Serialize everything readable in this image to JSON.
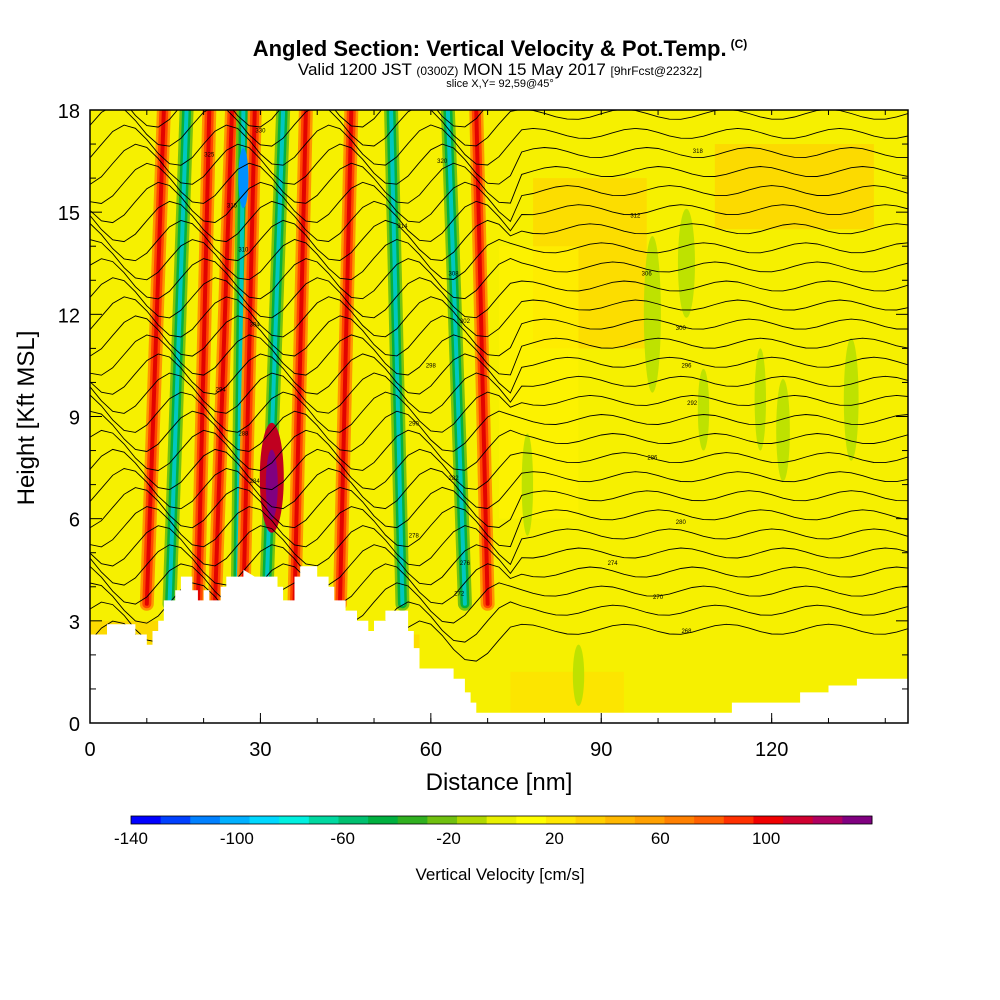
{
  "title": {
    "main": "Angled Section: Vertical Velocity & Pot.Temp.",
    "tag": "(C)",
    "valid_a": "Valid 1200 JST",
    "valid_b": "(0300Z)",
    "valid_c": "MON 15 May 2017",
    "valid_d": "[9hrFcst@2232z]",
    "slice": "slice X,Y= 92,59@45°"
  },
  "chart_data": {
    "type": "heatmap",
    "xlabel": "Distance [nm]",
    "ylabel": "Height [Kft MSL]",
    "xlim": [
      0,
      144
    ],
    "ylim": [
      0,
      18
    ],
    "x_ticks": [
      "0",
      "30",
      "60",
      "90",
      "120"
    ],
    "x_tick_values": [
      0,
      30,
      60,
      90,
      120
    ],
    "y_ticks": [
      "0",
      "3",
      "6",
      "9",
      "12",
      "15",
      "18"
    ],
    "y_tick_values": [
      0,
      3,
      6,
      9,
      12,
      15,
      18
    ],
    "colorbar": {
      "label": "Vertical Velocity [cm/s]",
      "tick_labels": [
        "-140",
        "-100",
        "-60",
        "-20",
        "20",
        "60",
        "100"
      ],
      "tick_values": [
        -140,
        -100,
        -60,
        -20,
        20,
        60,
        100
      ],
      "range": [
        -140,
        140
      ],
      "colors": [
        "#0000ff",
        "#0040ff",
        "#0080ff",
        "#00b0ff",
        "#00d8ff",
        "#00f0e0",
        "#00d8a0",
        "#00c070",
        "#00b040",
        "#30b020",
        "#70c010",
        "#b0d800",
        "#e8f000",
        "#ffff00",
        "#ffe800",
        "#ffd000",
        "#ffb800",
        "#ffa000",
        "#ff8000",
        "#ff6000",
        "#ff3000",
        "#f00000",
        "#d00030",
        "#b00060",
        "#800080"
      ]
    },
    "terrain_kft": [
      [
        0,
        2.6
      ],
      [
        3,
        2.6
      ],
      [
        3,
        2.9
      ],
      [
        8,
        2.9
      ],
      [
        8,
        2.6
      ],
      [
        10,
        2.6
      ],
      [
        10,
        2.3
      ],
      [
        11,
        2.3
      ],
      [
        11,
        2.7
      ],
      [
        12,
        2.7
      ],
      [
        12,
        3.0
      ],
      [
        13,
        3.0
      ],
      [
        13,
        3.6
      ],
      [
        15,
        3.6
      ],
      [
        15,
        3.9
      ],
      [
        16,
        3.9
      ],
      [
        16,
        4.3
      ],
      [
        18,
        4.3
      ],
      [
        18,
        3.9
      ],
      [
        19,
        3.9
      ],
      [
        19,
        3.6
      ],
      [
        20,
        3.6
      ],
      [
        20,
        3.9
      ],
      [
        21,
        3.9
      ],
      [
        21,
        3.6
      ],
      [
        23,
        3.6
      ],
      [
        23,
        4.0
      ],
      [
        24,
        4.0
      ],
      [
        24,
        4.3
      ],
      [
        27,
        4.3
      ],
      [
        27,
        4.5
      ],
      [
        29,
        4.3
      ],
      [
        31,
        4.3
      ],
      [
        33,
        4.3
      ],
      [
        33,
        4.0
      ],
      [
        34,
        4.0
      ],
      [
        34,
        3.6
      ],
      [
        36,
        3.6
      ],
      [
        36,
        4.3
      ],
      [
        37,
        4.3
      ],
      [
        37,
        4.6
      ],
      [
        39,
        4.6
      ],
      [
        40,
        4.6
      ],
      [
        40,
        4.3
      ],
      [
        42,
        4.3
      ],
      [
        42,
        4.0
      ],
      [
        43,
        4.0
      ],
      [
        43,
        3.6
      ],
      [
        45,
        3.6
      ],
      [
        45,
        3.3
      ],
      [
        47,
        3.3
      ],
      [
        47,
        3.0
      ],
      [
        49,
        3.0
      ],
      [
        49,
        2.7
      ],
      [
        50,
        2.7
      ],
      [
        50,
        3.0
      ],
      [
        52,
        3.0
      ],
      [
        52,
        3.3
      ],
      [
        56,
        3.3
      ],
      [
        56,
        2.7
      ],
      [
        57,
        2.7
      ],
      [
        57,
        2.2
      ],
      [
        58,
        2.2
      ],
      [
        58,
        1.6
      ],
      [
        64,
        1.6
      ],
      [
        64,
        1.3
      ],
      [
        66,
        1.3
      ],
      [
        66,
        0.9
      ],
      [
        67,
        0.9
      ],
      [
        67,
        0.6
      ],
      [
        68,
        0.6
      ],
      [
        68,
        0.3
      ],
      [
        113,
        0.3
      ],
      [
        113,
        0.6
      ],
      [
        125,
        0.6
      ],
      [
        125,
        0.9
      ],
      [
        130,
        0.9
      ],
      [
        130,
        1.1
      ],
      [
        135,
        1.1
      ],
      [
        135,
        1.3
      ],
      [
        144,
        1.3
      ]
    ],
    "updraft_bands": [
      {
        "x_top": 13,
        "x_bot": 10,
        "kind": "up"
      },
      {
        "x_top": 17,
        "x_bot": 14,
        "kind": "down"
      },
      {
        "x_top": 21,
        "x_bot": 19,
        "kind": "up"
      },
      {
        "x_top": 25,
        "x_bot": 22,
        "kind": "up"
      },
      {
        "x_top": 27,
        "x_bot": 26,
        "kind": "down"
      },
      {
        "x_top": 29,
        "x_bot": 27,
        "kind": "up"
      },
      {
        "x_top": 34,
        "x_bot": 31,
        "kind": "down"
      },
      {
        "x_top": 38,
        "x_bot": 36,
        "kind": "up"
      },
      {
        "x_top": 46,
        "x_bot": 44,
        "kind": "up"
      },
      {
        "x_top": 53,
        "x_bot": 55,
        "kind": "down"
      },
      {
        "x_top": 63,
        "x_bot": 66,
        "kind": "down"
      },
      {
        "x_top": 68,
        "x_bot": 70,
        "kind": "up"
      }
    ],
    "contour_labels": [
      {
        "text": "330",
        "x": 30,
        "y": 17.4
      },
      {
        "text": "325",
        "x": 21,
        "y": 16.7
      },
      {
        "text": "320",
        "x": 62,
        "y": 16.5
      },
      {
        "text": "318",
        "x": 107,
        "y": 16.8
      },
      {
        "text": "316",
        "x": 25,
        "y": 15.2
      },
      {
        "text": "314",
        "x": 55,
        "y": 14.6
      },
      {
        "text": "312",
        "x": 96,
        "y": 14.9
      },
      {
        "text": "310",
        "x": 27,
        "y": 13.9
      },
      {
        "text": "308",
        "x": 64,
        "y": 13.2
      },
      {
        "text": "306",
        "x": 98,
        "y": 13.2
      },
      {
        "text": "304",
        "x": 29,
        "y": 11.7
      },
      {
        "text": "302",
        "x": 66,
        "y": 11.8
      },
      {
        "text": "300",
        "x": 104,
        "y": 11.6
      },
      {
        "text": "298",
        "x": 60,
        "y": 10.5
      },
      {
        "text": "296",
        "x": 105,
        "y": 10.5
      },
      {
        "text": "294",
        "x": 23,
        "y": 9.8
      },
      {
        "text": "292",
        "x": 106,
        "y": 9.4
      },
      {
        "text": "290",
        "x": 57,
        "y": 8.8
      },
      {
        "text": "288",
        "x": 27,
        "y": 8.5
      },
      {
        "text": "286",
        "x": 99,
        "y": 7.8
      },
      {
        "text": "284",
        "x": 29,
        "y": 7.1
      },
      {
        "text": "282",
        "x": 64,
        "y": 7.2
      },
      {
        "text": "280",
        "x": 104,
        "y": 5.9
      },
      {
        "text": "278",
        "x": 57,
        "y": 5.5
      },
      {
        "text": "276",
        "x": 66,
        "y": 4.7
      },
      {
        "text": "274",
        "x": 92,
        "y": 4.7
      },
      {
        "text": "272",
        "x": 65,
        "y": 3.8
      },
      {
        "text": "270",
        "x": 100,
        "y": 3.7
      },
      {
        "text": "268",
        "x": 105,
        "y": 2.7
      }
    ]
  }
}
